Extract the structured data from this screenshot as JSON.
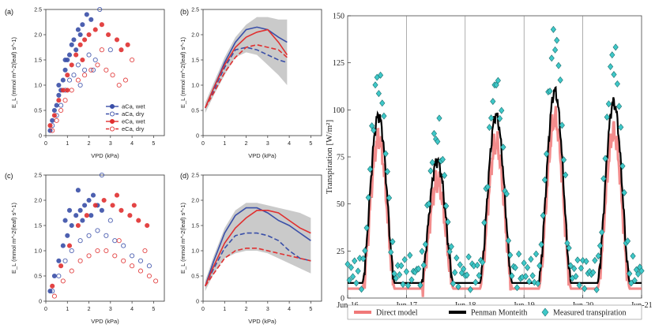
{
  "chart_data": [
    {
      "panel_label": "(a)",
      "type": "scatter",
      "xlabel": "VPD (kPa)",
      "ylabel": "E_L (mmol m^-2(leaf) s^-1)",
      "xlim": [
        0,
        5.5
      ],
      "ylim": [
        0,
        2.5
      ],
      "xticks": [
        "0",
        "1",
        "2",
        "3",
        "4",
        "5"
      ],
      "yticks": [
        "0",
        "0.5",
        "1.0",
        "1.5",
        "2.0",
        "2.5"
      ],
      "legend": [
        "aCa, wet",
        "aCa, dry",
        "eCa, wet",
        "eCa, dry"
      ],
      "legend_position": "bottom-right",
      "series_colors": {
        "aCa": "#3a4fa8",
        "eCa": "#e03030"
      },
      "points": [
        [
          0.2,
          0.1,
          "aw"
        ],
        [
          0.3,
          0.3,
          "aw"
        ],
        [
          0.4,
          0.5,
          "aw"
        ],
        [
          0.5,
          0.6,
          "aw"
        ],
        [
          0.6,
          0.8,
          "aw"
        ],
        [
          0.7,
          0.9,
          "aw"
        ],
        [
          0.8,
          1.1,
          "aw"
        ],
        [
          0.9,
          1.3,
          "aw"
        ],
        [
          1.0,
          1.5,
          "aw"
        ],
        [
          1.1,
          1.6,
          "aw"
        ],
        [
          1.2,
          1.8,
          "aw"
        ],
        [
          1.3,
          1.9,
          "aw"
        ],
        [
          1.5,
          2.1,
          "aw"
        ],
        [
          1.7,
          2.2,
          "aw"
        ],
        [
          1.9,
          2.4,
          "aw"
        ],
        [
          2.1,
          2.3,
          "aw"
        ],
        [
          0.6,
          1.0,
          "aw"
        ],
        [
          0.9,
          1.5,
          "aw"
        ],
        [
          1.4,
          1.7,
          "aw"
        ],
        [
          1.6,
          2.0,
          "aw"
        ],
        [
          0.3,
          0.2,
          "ad"
        ],
        [
          0.5,
          0.4,
          "ad"
        ],
        [
          0.7,
          0.6,
          "ad"
        ],
        [
          0.9,
          0.9,
          "ad"
        ],
        [
          1.1,
          1.1,
          "ad"
        ],
        [
          1.3,
          1.2,
          "ad"
        ],
        [
          1.5,
          1.4,
          "ad"
        ],
        [
          1.8,
          1.3,
          "ad"
        ],
        [
          2.0,
          1.6,
          "ad"
        ],
        [
          2.3,
          1.5,
          "ad"
        ],
        [
          2.5,
          2.5,
          "ad"
        ],
        [
          3.0,
          1.7,
          "ad"
        ],
        [
          1.6,
          1.0,
          "ad"
        ],
        [
          2.2,
          1.3,
          "ad"
        ],
        [
          0.2,
          0.2,
          "ew"
        ],
        [
          0.4,
          0.4,
          "ew"
        ],
        [
          0.6,
          0.7,
          "ew"
        ],
        [
          0.8,
          0.9,
          "ew"
        ],
        [
          1.0,
          1.2,
          "ew"
        ],
        [
          1.2,
          1.4,
          "ew"
        ],
        [
          1.4,
          1.6,
          "ew"
        ],
        [
          1.6,
          1.8,
          "ew"
        ],
        [
          1.8,
          1.9,
          "ew"
        ],
        [
          2.0,
          2.0,
          "ew"
        ],
        [
          2.3,
          2.1,
          "ew"
        ],
        [
          2.6,
          2.2,
          "ew"
        ],
        [
          2.9,
          2.0,
          "ew"
        ],
        [
          3.3,
          1.9,
          "ew"
        ],
        [
          3.5,
          1.7,
          "ew"
        ],
        [
          3.8,
          1.8,
          "ew"
        ],
        [
          1.0,
          0.9,
          "ew"
        ],
        [
          1.7,
          1.5,
          "ew"
        ],
        [
          0.3,
          0.1,
          "ed"
        ],
        [
          0.5,
          0.3,
          "ed"
        ],
        [
          0.7,
          0.5,
          "ed"
        ],
        [
          0.9,
          0.7,
          "ed"
        ],
        [
          1.2,
          0.9,
          "ed"
        ],
        [
          1.5,
          1.1,
          "ed"
        ],
        [
          1.8,
          1.2,
          "ed"
        ],
        [
          2.1,
          1.3,
          "ed"
        ],
        [
          2.4,
          1.4,
          "ed"
        ],
        [
          2.8,
          1.3,
          "ed"
        ],
        [
          3.1,
          1.2,
          "ed"
        ],
        [
          3.4,
          1.0,
          "ed"
        ],
        [
          3.7,
          1.1,
          "ed"
        ],
        [
          4.0,
          1.5,
          "ed"
        ],
        [
          2.6,
          1.7,
          "ed"
        ]
      ]
    },
    {
      "panel_label": "(b)",
      "type": "line",
      "xlabel": "VPD (kPa)",
      "ylabel": "E_L (mmol m^-2(leaf) s^-1)",
      "xlim": [
        0,
        5.5
      ],
      "ylim": [
        0,
        2.5
      ],
      "xticks": [
        "0",
        "1",
        "2",
        "3",
        "4",
        "5"
      ],
      "yticks": [
        "0",
        "0.5",
        "1.0",
        "1.5",
        "2.0",
        "2.5"
      ],
      "x": [
        0.1,
        0.5,
        1.0,
        1.5,
        2.0,
        2.5,
        3.0,
        3.5,
        3.9
      ],
      "series": [
        {
          "values": [
            0.55,
            0.95,
            1.45,
            1.85,
            2.1,
            2.15,
            2.1,
            1.95,
            1.85
          ],
          "color": "#3a4fa8",
          "dash": false
        },
        {
          "values": [
            0.55,
            0.9,
            1.35,
            1.7,
            1.75,
            1.7,
            1.6,
            1.5,
            1.45
          ],
          "color": "#3a4fa8",
          "dash": true
        },
        {
          "values": [
            0.55,
            0.95,
            1.4,
            1.75,
            1.95,
            2.05,
            2.1,
            1.85,
            1.6
          ],
          "color": "#e03030",
          "dash": false
        },
        {
          "values": [
            0.55,
            0.85,
            1.25,
            1.55,
            1.75,
            1.8,
            1.75,
            1.7,
            1.55
          ],
          "color": "#e03030",
          "dash": true
        }
      ],
      "band": {
        "upper": [
          0.65,
          1.05,
          1.55,
          1.95,
          2.2,
          2.35,
          2.35,
          2.3,
          2.3
        ],
        "lower": [
          0.45,
          0.8,
          1.2,
          1.55,
          1.65,
          1.6,
          1.4,
          1.2,
          1.0
        ]
      }
    },
    {
      "panel_label": "(c)",
      "type": "scatter",
      "xlabel": "VPD (kPa)",
      "ylabel": "E_L (mmol m^-2(leaf) s^-1)",
      "xlim": [
        0,
        5.5
      ],
      "ylim": [
        0,
        2.5
      ],
      "xticks": [
        "0",
        "1",
        "2",
        "3",
        "4",
        "5"
      ],
      "yticks": [
        "0",
        "0.5",
        "1.0",
        "1.5",
        "2.0",
        "2.5"
      ],
      "points": [
        [
          0.2,
          0.2,
          "aw"
        ],
        [
          0.4,
          0.5,
          "aw"
        ],
        [
          0.6,
          0.8,
          "aw"
        ],
        [
          0.8,
          1.1,
          "aw"
        ],
        [
          1.0,
          1.3,
          "aw"
        ],
        [
          1.2,
          1.5,
          "aw"
        ],
        [
          1.4,
          1.7,
          "aw"
        ],
        [
          1.6,
          1.8,
          "aw"
        ],
        [
          1.8,
          1.9,
          "aw"
        ],
        [
          2.0,
          2.0,
          "aw"
        ],
        [
          2.2,
          2.1,
          "aw"
        ],
        [
          2.4,
          1.9,
          "aw"
        ],
        [
          2.6,
          1.8,
          "aw"
        ],
        [
          1.1,
          1.8,
          "aw"
        ],
        [
          1.5,
          2.2,
          "aw"
        ],
        [
          0.9,
          1.6,
          "aw"
        ],
        [
          1.7,
          1.6,
          "aw"
        ],
        [
          2.1,
          1.7,
          "aw"
        ],
        [
          0.3,
          0.2,
          "ad"
        ],
        [
          0.6,
          0.5,
          "ad"
        ],
        [
          0.9,
          0.8,
          "ad"
        ],
        [
          1.2,
          1.0,
          "ad"
        ],
        [
          1.6,
          1.2,
          "ad"
        ],
        [
          2.0,
          1.3,
          "ad"
        ],
        [
          2.4,
          1.4,
          "ad"
        ],
        [
          2.8,
          1.3,
          "ad"
        ],
        [
          3.2,
          1.2,
          "ad"
        ],
        [
          3.6,
          1.1,
          "ad"
        ],
        [
          4.0,
          0.9,
          "ad"
        ],
        [
          4.4,
          0.8,
          "ad"
        ],
        [
          4.8,
          0.7,
          "ad"
        ],
        [
          2.6,
          2.5,
          "ad"
        ],
        [
          3.0,
          1.6,
          "ad"
        ],
        [
          0.3,
          0.3,
          "ew"
        ],
        [
          0.7,
          0.7,
          "ew"
        ],
        [
          1.1,
          1.1,
          "ew"
        ],
        [
          1.5,
          1.5,
          "ew"
        ],
        [
          1.9,
          1.7,
          "ew"
        ],
        [
          2.3,
          1.9,
          "ew"
        ],
        [
          2.7,
          2.0,
          "ew"
        ],
        [
          3.1,
          1.9,
          "ew"
        ],
        [
          3.5,
          1.8,
          "ew"
        ],
        [
          3.9,
          1.7,
          "ew"
        ],
        [
          4.3,
          1.6,
          "ew"
        ],
        [
          4.7,
          1.5,
          "ew"
        ],
        [
          3.3,
          2.1,
          "ew"
        ],
        [
          4.1,
          1.9,
          "ew"
        ],
        [
          0.4,
          0.1,
          "ed"
        ],
        [
          0.8,
          0.4,
          "ed"
        ],
        [
          1.2,
          0.6,
          "ed"
        ],
        [
          1.6,
          0.8,
          "ed"
        ],
        [
          2.0,
          0.9,
          "ed"
        ],
        [
          2.4,
          1.0,
          "ed"
        ],
        [
          2.8,
          1.0,
          "ed"
        ],
        [
          3.2,
          0.9,
          "ed"
        ],
        [
          3.6,
          0.8,
          "ed"
        ],
        [
          4.0,
          0.7,
          "ed"
        ],
        [
          4.4,
          0.6,
          "ed"
        ],
        [
          4.8,
          0.5,
          "ed"
        ],
        [
          5.1,
          0.4,
          "ed"
        ],
        [
          3.4,
          1.2,
          "ed"
        ],
        [
          4.6,
          1.0,
          "ed"
        ]
      ]
    },
    {
      "panel_label": "(d)",
      "type": "line",
      "xlabel": "VPD (kPa)",
      "ylabel": "E_L (mmol m^-2(leaf) s^-1)",
      "xlim": [
        0,
        5.5
      ],
      "ylim": [
        0,
        2.5
      ],
      "xticks": [
        "0",
        "1",
        "2",
        "3",
        "4",
        "5"
      ],
      "yticks": [
        "0",
        "0.5",
        "1.0",
        "1.5",
        "2.0",
        "2.5"
      ],
      "x": [
        0.1,
        0.5,
        1.0,
        1.5,
        2.0,
        2.5,
        3.0,
        3.5,
        4.0,
        4.5,
        5.0
      ],
      "series": [
        {
          "values": [
            0.3,
            0.8,
            1.35,
            1.7,
            1.85,
            1.85,
            1.75,
            1.6,
            1.5,
            1.35,
            1.2
          ],
          "color": "#3a4fa8",
          "dash": false
        },
        {
          "values": [
            0.3,
            0.65,
            1.05,
            1.3,
            1.35,
            1.35,
            1.3,
            1.2,
            1.0,
            0.85,
            0.8
          ],
          "color": "#3a4fa8",
          "dash": true
        },
        {
          "values": [
            0.3,
            0.7,
            1.15,
            1.45,
            1.65,
            1.8,
            1.8,
            1.75,
            1.6,
            1.45,
            1.35
          ],
          "color": "#e03030",
          "dash": false
        },
        {
          "values": [
            0.3,
            0.55,
            0.85,
            1.0,
            1.05,
            1.05,
            1.0,
            0.95,
            0.9,
            0.85,
            0.8
          ],
          "color": "#e03030",
          "dash": true
        }
      ],
      "band": {
        "upper": [
          0.4,
          0.9,
          1.45,
          1.8,
          1.95,
          1.95,
          1.9,
          1.85,
          1.8,
          1.75,
          1.65
        ],
        "lower": [
          0.2,
          0.55,
          0.85,
          0.95,
          1.0,
          1.0,
          0.95,
          0.85,
          0.75,
          0.65,
          0.55
        ]
      }
    },
    {
      "panel_label": "",
      "type": "line",
      "xlabel": "",
      "ylabel": "Transpiration [W/m²]",
      "xlim": [
        0,
        5
      ],
      "ylim": [
        0,
        150
      ],
      "xticks": [
        "Jun-16",
        "Jun-17",
        "Jun-18",
        "Jun-19",
        "Jun-20",
        "Jun-21"
      ],
      "yticks": [
        "0",
        "25",
        "50",
        "75",
        "100",
        "125",
        "150"
      ],
      "legend": [
        "Direct model",
        "Penman Monteith",
        "Measured transpiration"
      ],
      "legend_position": "bottom",
      "series_colors": {
        "direct": "#f07878",
        "penman": "#000000",
        "measured": "#3ec8c8"
      },
      "day_peaks": [
        {
          "direct": 85,
          "penman": 97,
          "measured": 116
        },
        {
          "direct": 62,
          "penman": 73,
          "measured": 88
        },
        {
          "direct": 82,
          "penman": 97,
          "measured": 114
        },
        {
          "direct": 95,
          "penman": 110,
          "measured": 138
        },
        {
          "direct": 88,
          "penman": 104,
          "measured": 128
        }
      ],
      "night_baseline": {
        "direct": 5,
        "penman": 8,
        "measured": 14
      }
    }
  ]
}
